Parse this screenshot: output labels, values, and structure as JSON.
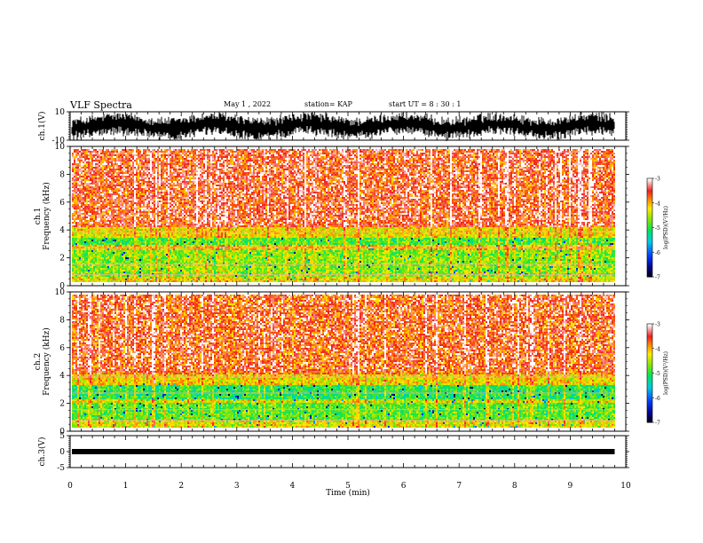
{
  "header": {
    "title": "VLF Spectra",
    "date": "May 1 , 2022",
    "station": "station= KAP",
    "start": "start UT = 8 : 30 : 1"
  },
  "chart_data": [
    {
      "type": "line",
      "name": "ch1-waveform",
      "ylabel": "ch.1(V)",
      "ylim": [
        -10,
        10
      ],
      "yticks": [
        "10",
        "-10"
      ],
      "xlim": [
        0,
        10
      ],
      "description_values": {
        "center": 0,
        "amplitude": 5
      }
    },
    {
      "type": "heatmap",
      "name": "ch1-spectrogram",
      "ylabel": "ch.1\nFrequency (kHz)",
      "ylim": [
        0,
        10
      ],
      "yticks": [
        "0",
        "2",
        "4",
        "6",
        "8",
        "10"
      ],
      "xlim": [
        0,
        10
      ],
      "data_end_min": 9.8,
      "colorbar": {
        "label": "log(PSD)(V²/Hz)",
        "range": [
          -7,
          -3
        ],
        "ticks": [
          "-3",
          "-4",
          "-5",
          "-6",
          "-7"
        ]
      },
      "bands_khz": [
        {
          "from": 0,
          "to": 0.4,
          "level": -4.2
        },
        {
          "from": 0.4,
          "to": 2.4,
          "level": -4.6
        },
        {
          "from": 2.4,
          "to": 2.8,
          "level": -4.1
        },
        {
          "from": 2.8,
          "to": 3.4,
          "level": -4.8
        },
        {
          "from": 3.4,
          "to": 4.2,
          "level": -4.2
        },
        {
          "from": 4.2,
          "to": 10,
          "level": -3.6
        }
      ]
    },
    {
      "type": "heatmap",
      "name": "ch2-spectrogram",
      "ylabel": "ch.2\nFrequency (kHz)",
      "ylim": [
        0,
        10
      ],
      "yticks": [
        "0",
        "2",
        "4",
        "6",
        "8",
        "10"
      ],
      "xlim": [
        0,
        10
      ],
      "data_end_min": 9.8,
      "colorbar": {
        "label": "log(PSD)(V²/Hz)",
        "range": [
          -7,
          -3
        ],
        "ticks": [
          "-3",
          "-4",
          "-5",
          "-6",
          "-7"
        ]
      },
      "bands_khz": [
        {
          "from": 0,
          "to": 0.5,
          "level": -4.3
        },
        {
          "from": 0.5,
          "to": 1.8,
          "level": -4.8
        },
        {
          "from": 1.8,
          "to": 2.2,
          "level": -4.3
        },
        {
          "from": 2.2,
          "to": 3.2,
          "level": -5.0
        },
        {
          "from": 3.2,
          "to": 4.0,
          "level": -4.2
        },
        {
          "from": 4.0,
          "to": 10,
          "level": -3.7
        }
      ]
    },
    {
      "type": "line",
      "name": "ch3-waveform",
      "ylabel": "ch.3(V)",
      "ylim": [
        -5,
        5
      ],
      "yticks": [
        "5",
        "0",
        "-5"
      ],
      "xlim": [
        0,
        10
      ],
      "xlabel": "Time (min)",
      "xticks": [
        "0",
        "1",
        "2",
        "3",
        "4",
        "5",
        "6",
        "7",
        "8",
        "9",
        "10"
      ],
      "description_values": {
        "center": 0,
        "amplitude": 0.4
      }
    }
  ]
}
